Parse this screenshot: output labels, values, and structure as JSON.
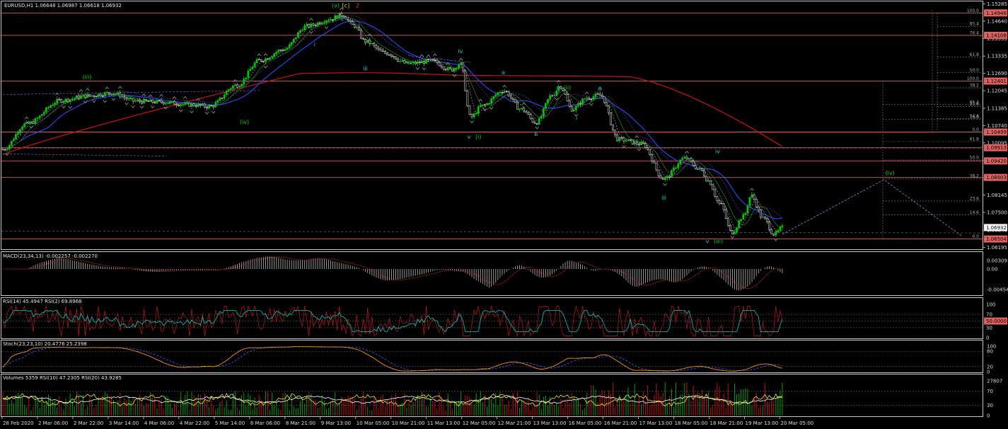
{
  "chart_data": {
    "type": "candlestick",
    "title": "EURUSD,H1  1.06648 1.06987 1.06618 1.06932",
    "symbol": "EURUSD",
    "timeframe": "H1",
    "ohlc_last": {
      "open": 1.06648,
      "high": 1.06987,
      "low": 1.06618,
      "close": 1.06932
    },
    "price_axis": {
      "ylim": [
        1.0615,
        1.1535
      ],
      "ticks": [
        "1.15285",
        "1.14640",
        "1.13995",
        "1.13335",
        "1.12690",
        "1.12045",
        "1.11385",
        "1.10740",
        "1.10095",
        "1.09435",
        "1.08790",
        "1.08145",
        "1.07500",
        "1.06840",
        "1.06195"
      ],
      "tick_values": [
        1.15285,
        1.1464,
        1.13995,
        1.13335,
        1.1269,
        1.12045,
        1.11385,
        1.1074,
        1.10095,
        1.09435,
        1.0879,
        1.08145,
        1.075,
        1.0684,
        1.06195
      ]
    },
    "time_axis": {
      "labels": [
        "28 Feb 2020",
        "2 Mar 06:00",
        "2 Mar 22:00",
        "3 Mar 14:00",
        "4 Mar 06:00",
        "4 Mar 22:00",
        "5 Mar 14:00",
        "6 Mar 06:00",
        "8 Mar 21:00",
        "9 Mar 13:00",
        "10 Mar 05:00",
        "10 Mar 21:00",
        "11 Mar 13:00",
        "12 Mar 05:00",
        "12 Mar 21:00",
        "13 Mar 13:00",
        "16 Mar 05:00",
        "16 Mar 21:00",
        "17 Mar 13:00",
        "18 Mar 05:00",
        "18 Mar 21:00",
        "19 Mar 13:00",
        "20 Mar 05:00"
      ]
    },
    "horizontal_levels": [
      {
        "value": 1.14946,
        "label": "1.14946"
      },
      {
        "value": 1.14108,
        "label": "1.14108"
      },
      {
        "value": 1.12401,
        "label": "1.12401"
      },
      {
        "value": 1.10499,
        "label": "1.10499"
      },
      {
        "value": 1.09913,
        "label": "1.09913"
      },
      {
        "value": 1.0942,
        "label": "1.09420"
      },
      {
        "value": 1.08803,
        "label": "1.08803"
      },
      {
        "value": 1.06504,
        "label": "1.06504"
      }
    ],
    "current_price_label": "1.06932",
    "fib_right": [
      {
        "value": 1.14946,
        "label": "100.0"
      },
      {
        "value": 1.14446,
        "label": "85.4"
      },
      {
        "value": 1.14101,
        "label": "76.4"
      },
      {
        "value": 1.13297,
        "label": "61.8"
      },
      {
        "value": 1.12723,
        "label": "50.0"
      },
      {
        "value": 1.12149,
        "label": "38.2"
      },
      {
        "value": 1.11452,
        "label": "23.6"
      },
      {
        "value": 1.11,
        "label": "14.6"
      },
      {
        "value": 1.10499,
        "label": "0.0"
      }
    ],
    "fib_mid": [
      {
        "value": 1.12401,
        "label": "100.0"
      },
      {
        "value": 1.11523,
        "label": "85.4"
      },
      {
        "value": 1.10981,
        "label": "76.4"
      },
      {
        "value": 1.10142,
        "label": "61.8"
      },
      {
        "value": 1.09452,
        "label": "50.0"
      },
      {
        "value": 1.08763,
        "label": "38.2"
      },
      {
        "value": 1.07923,
        "label": "23.6"
      },
      {
        "value": 1.074,
        "label": "14.6"
      },
      {
        "value": 1.06504,
        "label": "0.0"
      }
    ],
    "wave_labels": [
      {
        "text": "(iii)",
        "color": "#00d000",
        "t": 0.108,
        "p": 1.1248
      },
      {
        "text": "(iv)",
        "color": "#00d000",
        "t": 0.31,
        "p": 1.108
      },
      {
        "text": "(v)",
        "color": "#00d000",
        "t": 0.427,
        "p": 1.1515
      },
      {
        "text": "[c]",
        "color": "#d9c400",
        "t": 0.44,
        "p": 1.1515
      },
      {
        "text": "2",
        "color": "#ff3030",
        "t": 0.455,
        "p": 1.1515
      },
      {
        "text": "ii",
        "color": "#00d0d0",
        "t": 0.435,
        "p": 1.1465
      },
      {
        "text": "i",
        "color": "#00d0d0",
        "t": 0.4,
        "p": 1.137
      },
      {
        "text": "iii",
        "color": "#00d0d0",
        "t": 0.465,
        "p": 1.128
      },
      {
        "text": "iv",
        "color": "#00d0d0",
        "t": 0.587,
        "p": 1.1345
      },
      {
        "text": "v",
        "color": "#00d0d0",
        "t": 0.598,
        "p": 1.1025
      },
      {
        "text": "(i)",
        "color": "#00d000",
        "t": 0.61,
        "p": 1.1025
      },
      {
        "text": "a",
        "color": "#00d0d0",
        "t": 0.642,
        "p": 1.1265
      },
      {
        "text": "b",
        "color": "#00d0d0",
        "t": 0.684,
        "p": 1.1035
      },
      {
        "text": "c",
        "color": "#00d0d0",
        "t": 0.712,
        "p": 1.1208
      },
      {
        "text": "(ii)",
        "color": "#00d000",
        "t": 0.724,
        "p": 1.1208
      },
      {
        "text": "i",
        "color": "#00d0d0",
        "t": 0.736,
        "p": 1.1095
      },
      {
        "text": "ii",
        "color": "#00d0d0",
        "t": 0.766,
        "p": 1.1205
      },
      {
        "text": "iii",
        "color": "#00d0d0",
        "t": 0.848,
        "p": 1.0797
      },
      {
        "text": "iv",
        "color": "#00d0d0",
        "t": 0.917,
        "p": 1.097
      },
      {
        "text": "v",
        "color": "#00d0d0",
        "t": 0.904,
        "p": 1.0635
      },
      {
        "text": "(iii)",
        "color": "#00d000",
        "t": 0.918,
        "p": 1.0635
      },
      {
        "text": "(iv)",
        "color": "#00d000",
        "t": 1.138,
        "p": 1.089
      }
    ],
    "projection": [
      {
        "t": 1.0,
        "p": 1.0668
      },
      {
        "t": 1.13,
        "p": 1.0872
      },
      {
        "t": 1.23,
        "p": 1.0662
      }
    ],
    "series": [
      {
        "name": "MA red (slow)",
        "color": "#d01010"
      },
      {
        "name": "MA blue",
        "color": "#2040ff"
      }
    ],
    "indicators": [
      {
        "name": "MACD",
        "header": "MACD(23,34,13) -0.002257 -0.002270",
        "ticks": [
          "0.003091",
          "0.00",
          "-0.004544"
        ]
      },
      {
        "name": "RSI",
        "header": "RSI(14) 45.4947  RSI(2) 69.8968",
        "ticks": [
          "100",
          "70",
          "50.0000",
          "30",
          "0"
        ]
      },
      {
        "name": "Stoch",
        "header": "Stoch(23,23,10) 20.4776 25.2398",
        "ticks": [
          "100",
          "80",
          "20",
          "0"
        ]
      },
      {
        "name": "Volumes",
        "header": "Volumes 5359  RSI(10) 47.2305  RSI(20) 43.9285",
        "ticks": [
          "27807",
          "70",
          "30",
          "0"
        ]
      }
    ],
    "grid": false,
    "legend": "none"
  }
}
